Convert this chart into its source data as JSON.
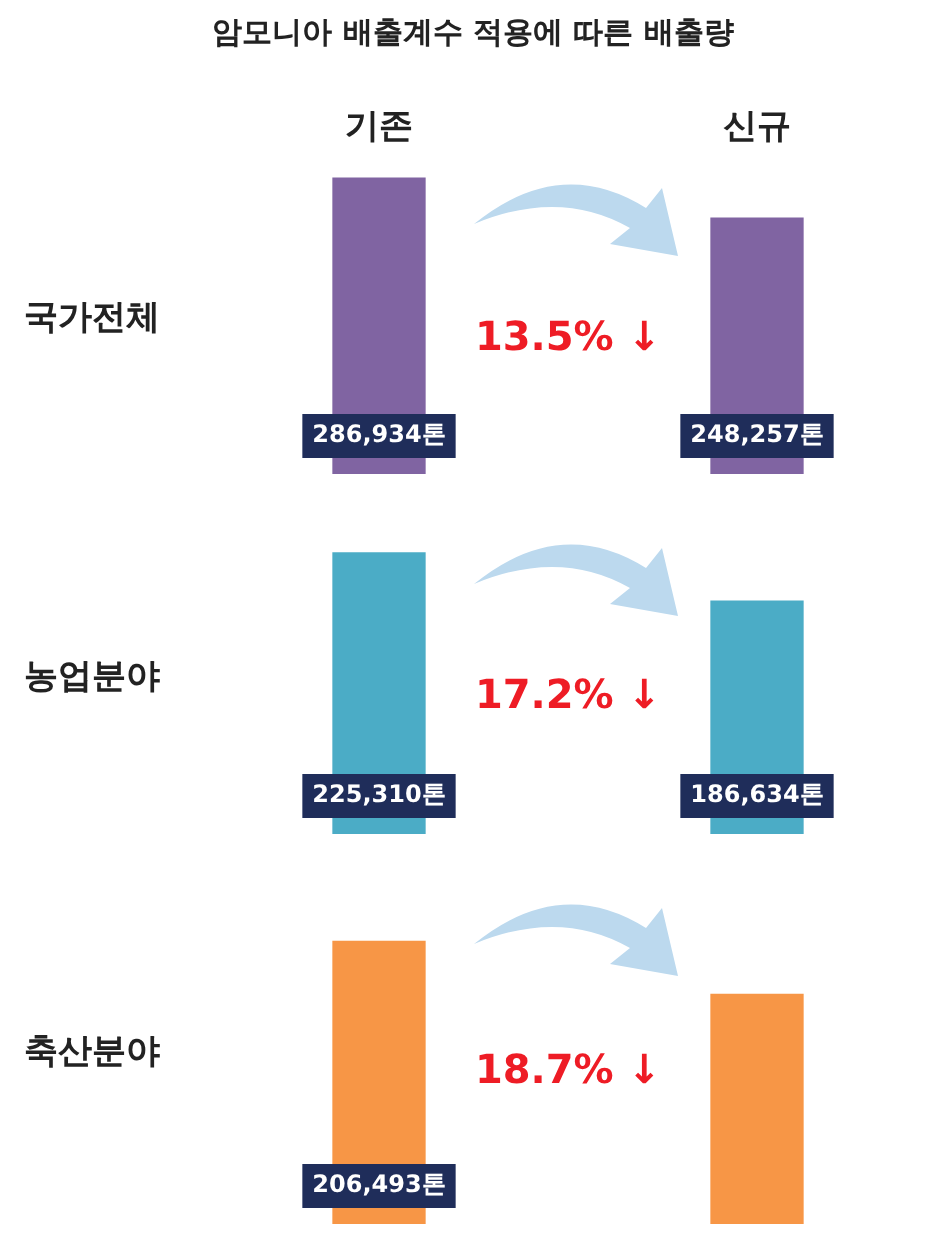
{
  "chart_data": [
    {
      "type": "bar",
      "title": "암모니아 배출계수 적용에 따른 배출량",
      "ylabel": "국가전체",
      "categories": [
        "기존",
        "신규"
      ],
      "values": [
        286934,
        248257
      ],
      "value_labels": [
        "286,934톤",
        "248,257톤"
      ],
      "color": "#8064a2",
      "annotations": [
        "13.5% ↓"
      ],
      "tick_labels": "x"
    },
    {
      "type": "bar",
      "ylabel": "농업분야",
      "categories": [
        null,
        null
      ],
      "values": [
        225310,
        186634
      ],
      "value_labels": [
        "225,310톤",
        "186,634톤"
      ],
      "color": "#4bacc6",
      "annotations": [
        "17.2% ↓"
      ],
      "tick_labels": false
    },
    {
      "type": "bar",
      "ylabel": "축산분야",
      "categories": [
        null,
        null
      ],
      "values": [
        206493,
        167879
      ],
      "value_labels": [
        "206,493톤",
        null
      ],
      "color": "#f79646",
      "annotations": [
        "18.7% ↓"
      ],
      "tick_labels": false
    }
  ]
}
